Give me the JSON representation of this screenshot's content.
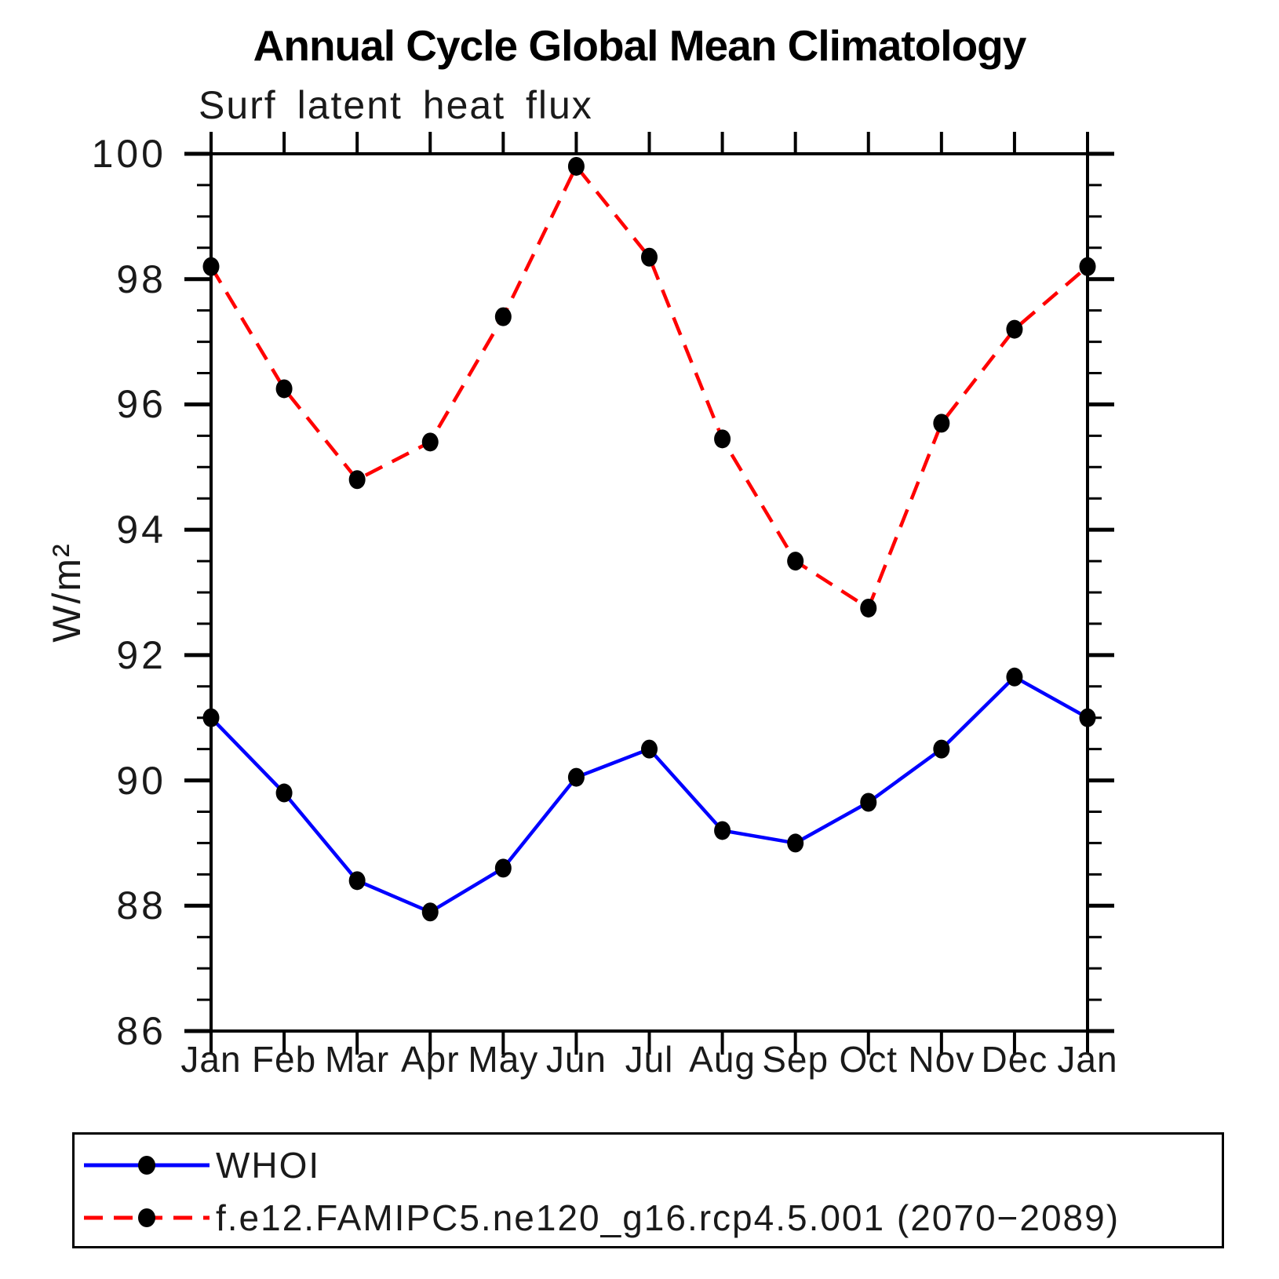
{
  "page": {
    "title": "Annual Cycle Global Mean Climatology"
  },
  "chart_data": {
    "type": "line",
    "title": "Annual Cycle Global Mean Climatology",
    "subtitle": "Surf latent heat flux",
    "ylabel": "W/m²",
    "xlabel": "",
    "categories": [
      "Jan",
      "Feb",
      "Mar",
      "Apr",
      "May",
      "Jun",
      "Jul",
      "Aug",
      "Sep",
      "Oct",
      "Nov",
      "Dec",
      "Jan"
    ],
    "ylim": [
      86,
      100
    ],
    "ytick_major_step": 2,
    "ytick_minor_step": 0.5,
    "grid": false,
    "legend_position": "bottom",
    "axis_color": "#000000",
    "marker_color": "#000000",
    "series": [
      {
        "name": "WHOI",
        "color": "#0000ff",
        "style": "solid",
        "marker": "filled-circle",
        "values": [
          91.0,
          89.8,
          88.4,
          87.9,
          88.6,
          90.05,
          90.5,
          89.2,
          89.0,
          89.65,
          90.5,
          91.65,
          91.0
        ]
      },
      {
        "name": "f.e12.FAMIPC5.ne120_g16.rcp4.5.001 (2070−2089)",
        "color": "#ff0000",
        "style": "dashed",
        "marker": "filled-circle",
        "values": [
          98.2,
          96.25,
          94.8,
          95.4,
          97.4,
          99.8,
          98.35,
          95.45,
          93.5,
          92.75,
          95.7,
          97.2,
          98.2
        ]
      }
    ]
  }
}
